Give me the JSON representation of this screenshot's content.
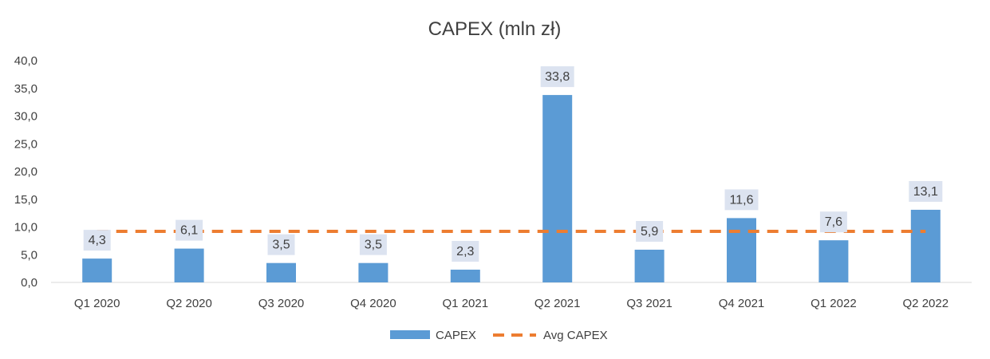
{
  "chart_data": {
    "type": "bar",
    "title": "CAPEX (mln zł)",
    "xlabel": "",
    "ylabel": "",
    "categories": [
      "Q1 2020",
      "Q2 2020",
      "Q3 2020",
      "Q4 2020",
      "Q1 2021",
      "Q2 2021",
      "Q3 2021",
      "Q4 2021",
      "Q1 2022",
      "Q2 2022"
    ],
    "series": [
      {
        "name": "CAPEX",
        "type": "bar",
        "values": [
          4.3,
          6.1,
          3.5,
          3.5,
          2.3,
          33.8,
          5.9,
          11.6,
          7.6,
          13.1
        ],
        "data_labels": [
          "4,3",
          "6,1",
          "3,5",
          "3,5",
          "2,3",
          "33,8",
          "5,9",
          "11,6",
          "7,6",
          "13,1"
        ],
        "color": "#5B9BD5"
      },
      {
        "name": "Avg CAPEX",
        "type": "line",
        "style": "dashed",
        "values": [
          9.2,
          9.2,
          9.2,
          9.2,
          9.2,
          9.2,
          9.2,
          9.2,
          9.2,
          9.2
        ],
        "color": "#ED7D31"
      }
    ],
    "ylim": [
      0,
      40
    ],
    "yticks": [
      "0,0",
      "5,0",
      "10,0",
      "15,0",
      "20,0",
      "25,0",
      "30,0",
      "35,0",
      "40,0"
    ],
    "grid": false,
    "legend_position": "bottom",
    "label_box_color": "#DCE3F0"
  }
}
